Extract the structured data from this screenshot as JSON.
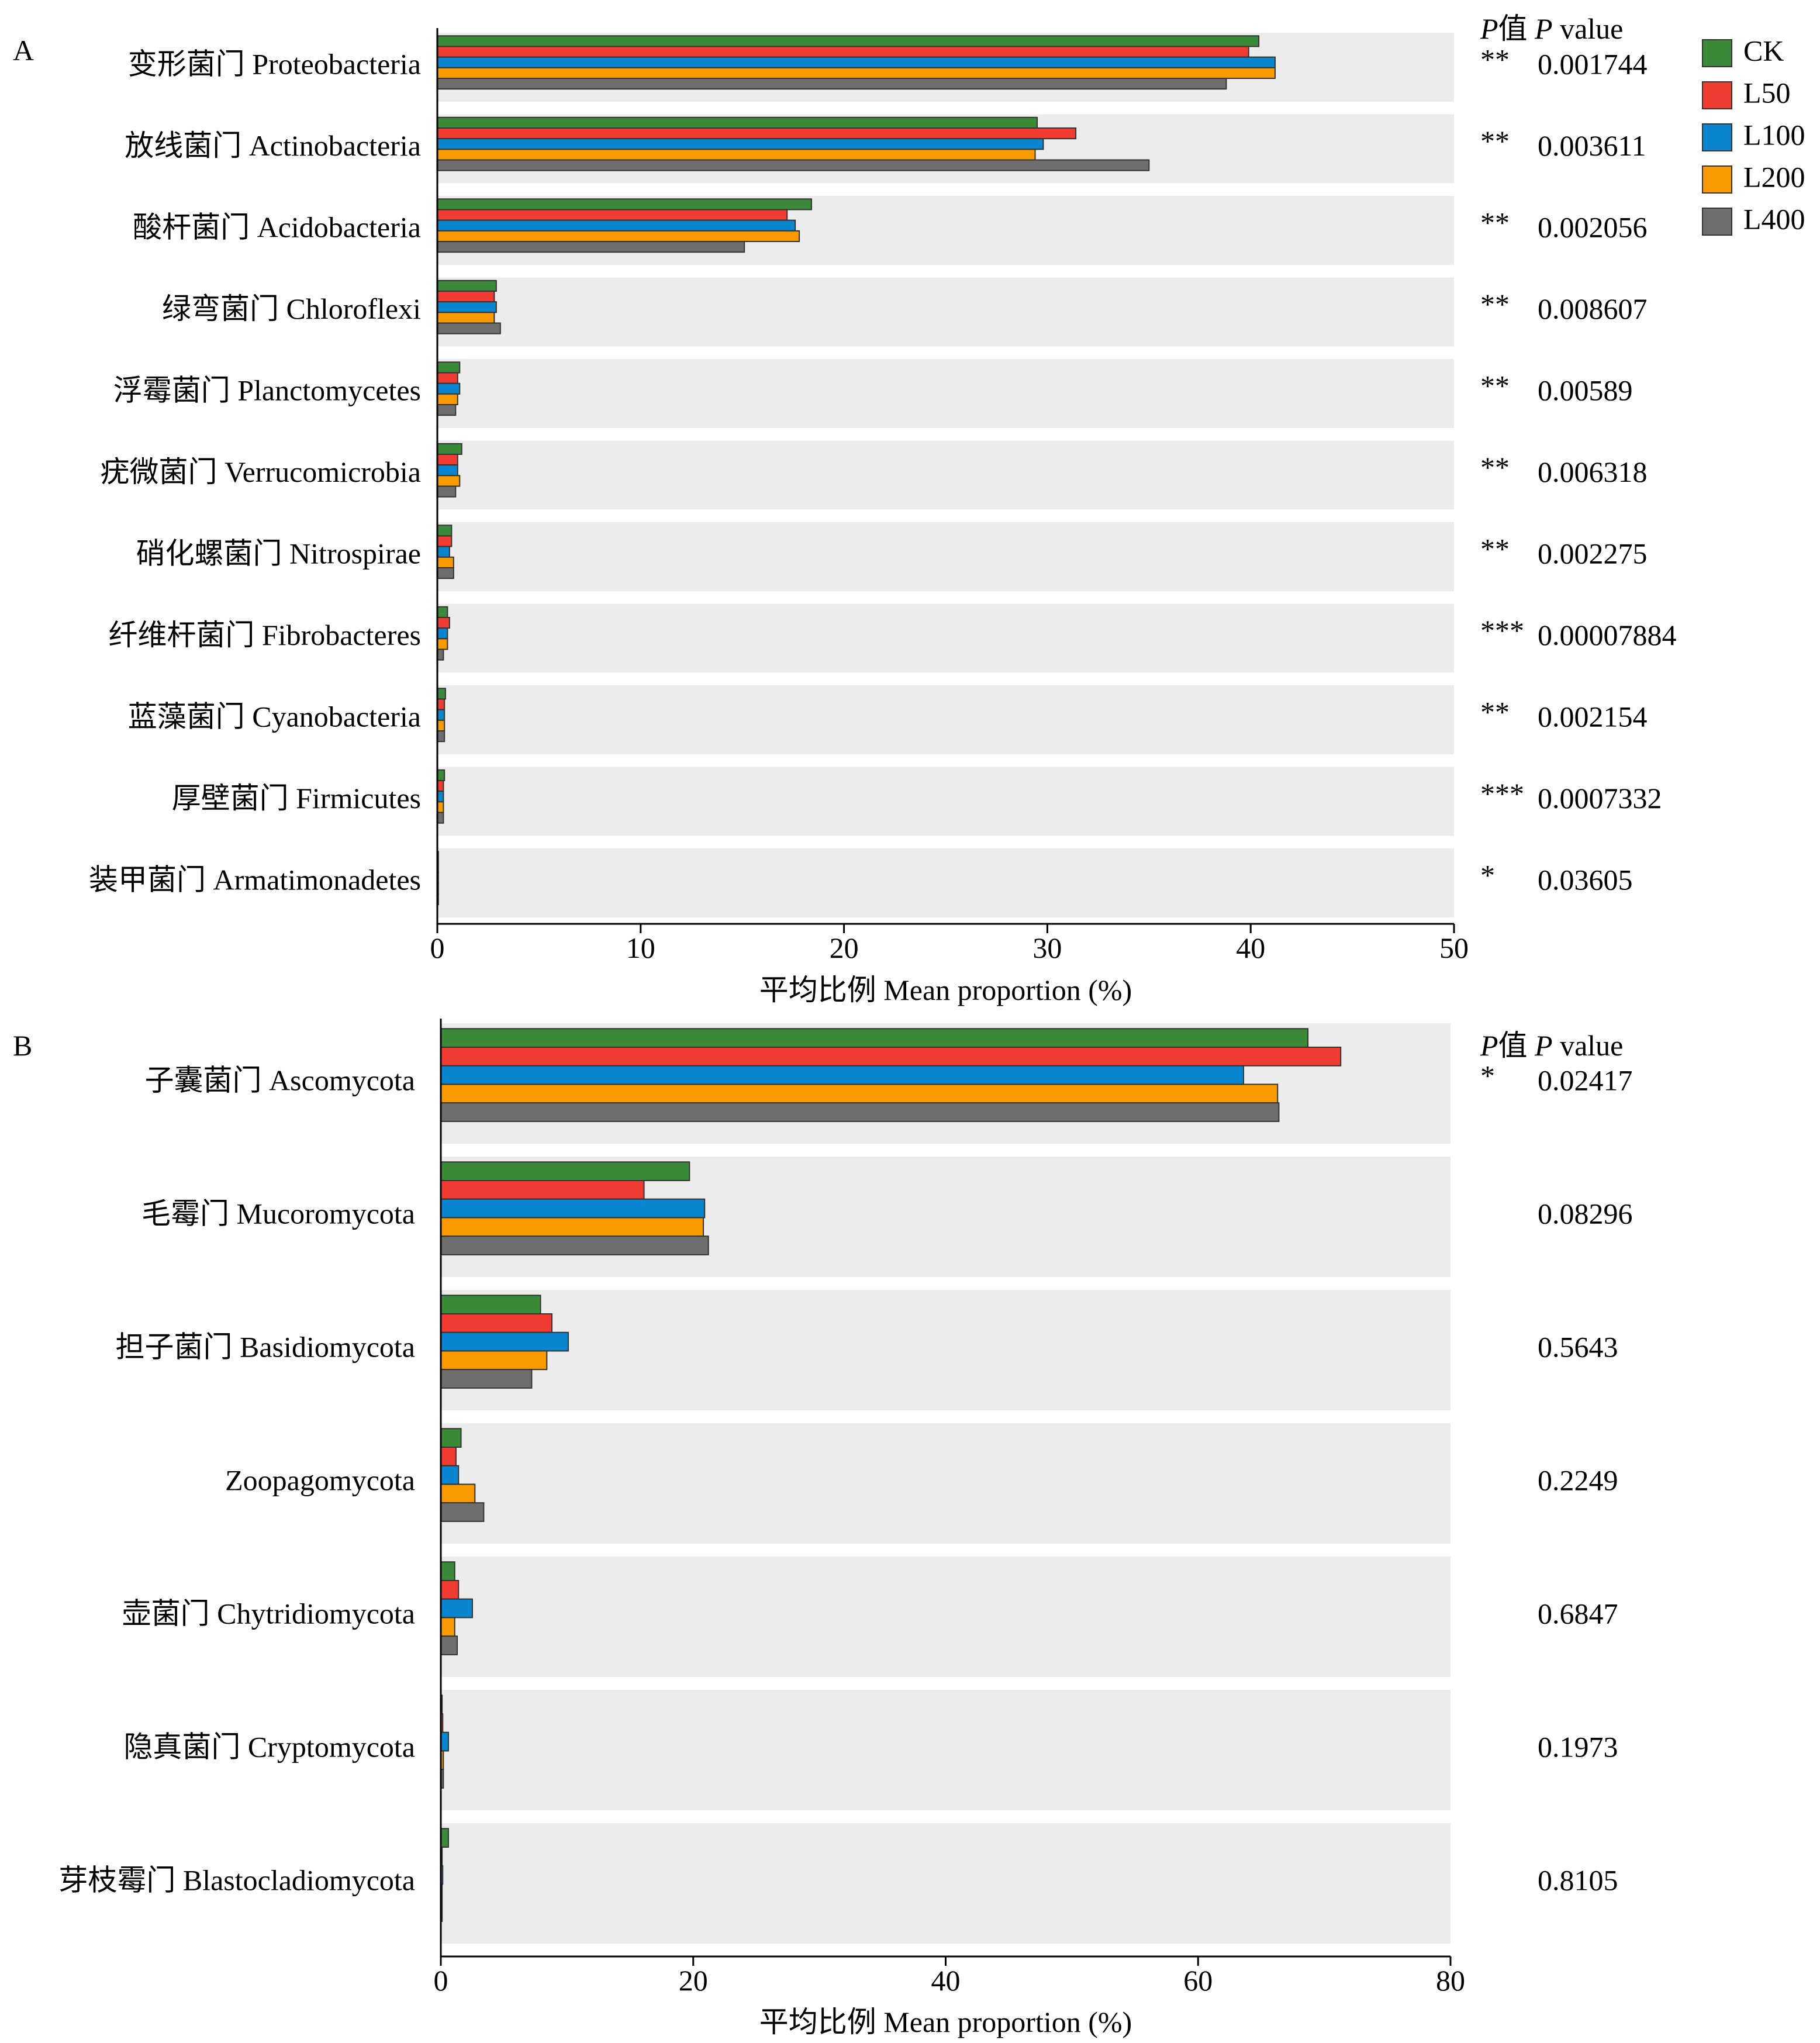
{
  "legend": {
    "items": [
      {
        "name": "CK",
        "color": "#3a8a3a"
      },
      {
        "name": "L50",
        "color": "#f03c32"
      },
      {
        "name": "L100",
        "color": "#0a86d0"
      },
      {
        "name": "L200",
        "color": "#f99a00"
      },
      {
        "name": "L400",
        "color": "#6e6e6e"
      }
    ]
  },
  "chart_data": [
    {
      "type": "bar",
      "orientation": "horizontal",
      "panel_label": "A",
      "xlabel": "平均比例 Mean proportion (%)",
      "xlim": [
        0,
        50
      ],
      "xticks": [
        "0",
        "10",
        "20",
        "30",
        "40",
        "50"
      ],
      "pvalue_header_italic": "P",
      "pvalue_header_rest": "值 ",
      "pvalue_header_italic2": "P",
      "pvalue_header_tail": " value",
      "categories": [
        "变形菌门 Proteobacteria",
        "放线菌门 Actinobacteria",
        "酸杆菌门 Acidobacteria",
        "绿弯菌门 Chloroflexi",
        "浮霉菌门 Planctomycetes",
        "疣微菌门 Verrucomicrobia",
        "硝化螺菌门 Nitrospirae",
        "纤维杆菌门  Fibrobacteres",
        "蓝藻菌门 Cyanobacteria",
        "厚壁菌门 Firmicutes",
        "装甲菌门 Armatimonadetes"
      ],
      "significance": [
        "**",
        "**",
        "**",
        "**",
        "**",
        "**",
        "**",
        "***",
        "**",
        "***",
        "*"
      ],
      "pvalues": [
        "0.001744",
        "0.003611",
        "0.002056",
        "0.008607",
        "0.00589",
        "0.006318",
        "0.002275",
        "0.00007884",
        "0.002154",
        "0.0007332",
        "0.03605"
      ],
      "series": [
        {
          "name": "CK",
          "values": [
            40.4,
            29.5,
            18.4,
            2.9,
            1.1,
            1.2,
            0.7,
            0.5,
            0.4,
            0.35,
            0.05
          ]
        },
        {
          "name": "L50",
          "values": [
            39.9,
            31.4,
            17.2,
            2.8,
            1.0,
            1.0,
            0.7,
            0.6,
            0.35,
            0.3,
            0.05
          ]
        },
        {
          "name": "L100",
          "values": [
            41.2,
            29.8,
            17.6,
            2.9,
            1.1,
            1.0,
            0.6,
            0.5,
            0.35,
            0.3,
            0.05
          ]
        },
        {
          "name": "L200",
          "values": [
            41.2,
            29.4,
            17.8,
            2.8,
            1.0,
            1.1,
            0.8,
            0.5,
            0.35,
            0.3,
            0.05
          ]
        },
        {
          "name": "L400",
          "values": [
            38.8,
            35.0,
            15.1,
            3.1,
            0.9,
            0.9,
            0.8,
            0.3,
            0.35,
            0.3,
            0.05
          ]
        }
      ]
    },
    {
      "type": "bar",
      "orientation": "horizontal",
      "panel_label": "B",
      "xlabel": "平均比例 Mean proportion (%)",
      "xlim": [
        0,
        80
      ],
      "xticks": [
        "0",
        "20",
        "40",
        "60",
        "80"
      ],
      "pvalue_header_italic": "P",
      "pvalue_header_rest": "值 ",
      "pvalue_header_italic2": "P",
      "pvalue_header_tail": " value",
      "categories": [
        "子囊菌门 Ascomycota",
        "毛霉门 Mucoromycota",
        "担子菌门 Basidiomycota",
        "Zoopagomycota",
        "壶菌门 Chytridiomycota",
        "隐真菌门 Cryptomycota",
        "芽枝霉门 Blastocladiomycota"
      ],
      "significance": [
        "*",
        "",
        "",
        "",
        "",
        "",
        ""
      ],
      "pvalues": [
        "0.02417",
        "0.08296",
        "0.5643",
        "0.2249",
        "0.6847",
        "0.1973",
        "0.8105"
      ],
      "series": [
        {
          "name": "CK",
          "values": [
            68.7,
            19.7,
            7.9,
            1.6,
            1.1,
            0.1,
            0.6
          ]
        },
        {
          "name": "L50",
          "values": [
            71.3,
            16.1,
            8.8,
            1.2,
            1.4,
            0.15,
            0.1
          ]
        },
        {
          "name": "L100",
          "values": [
            63.6,
            20.9,
            10.1,
            1.4,
            2.5,
            0.6,
            0.15
          ]
        },
        {
          "name": "L200",
          "values": [
            66.3,
            20.8,
            8.4,
            2.7,
            1.1,
            0.2,
            0.1
          ]
        },
        {
          "name": "L400",
          "values": [
            66.4,
            21.2,
            7.2,
            3.4,
            1.3,
            0.2,
            0.1
          ]
        }
      ]
    }
  ]
}
